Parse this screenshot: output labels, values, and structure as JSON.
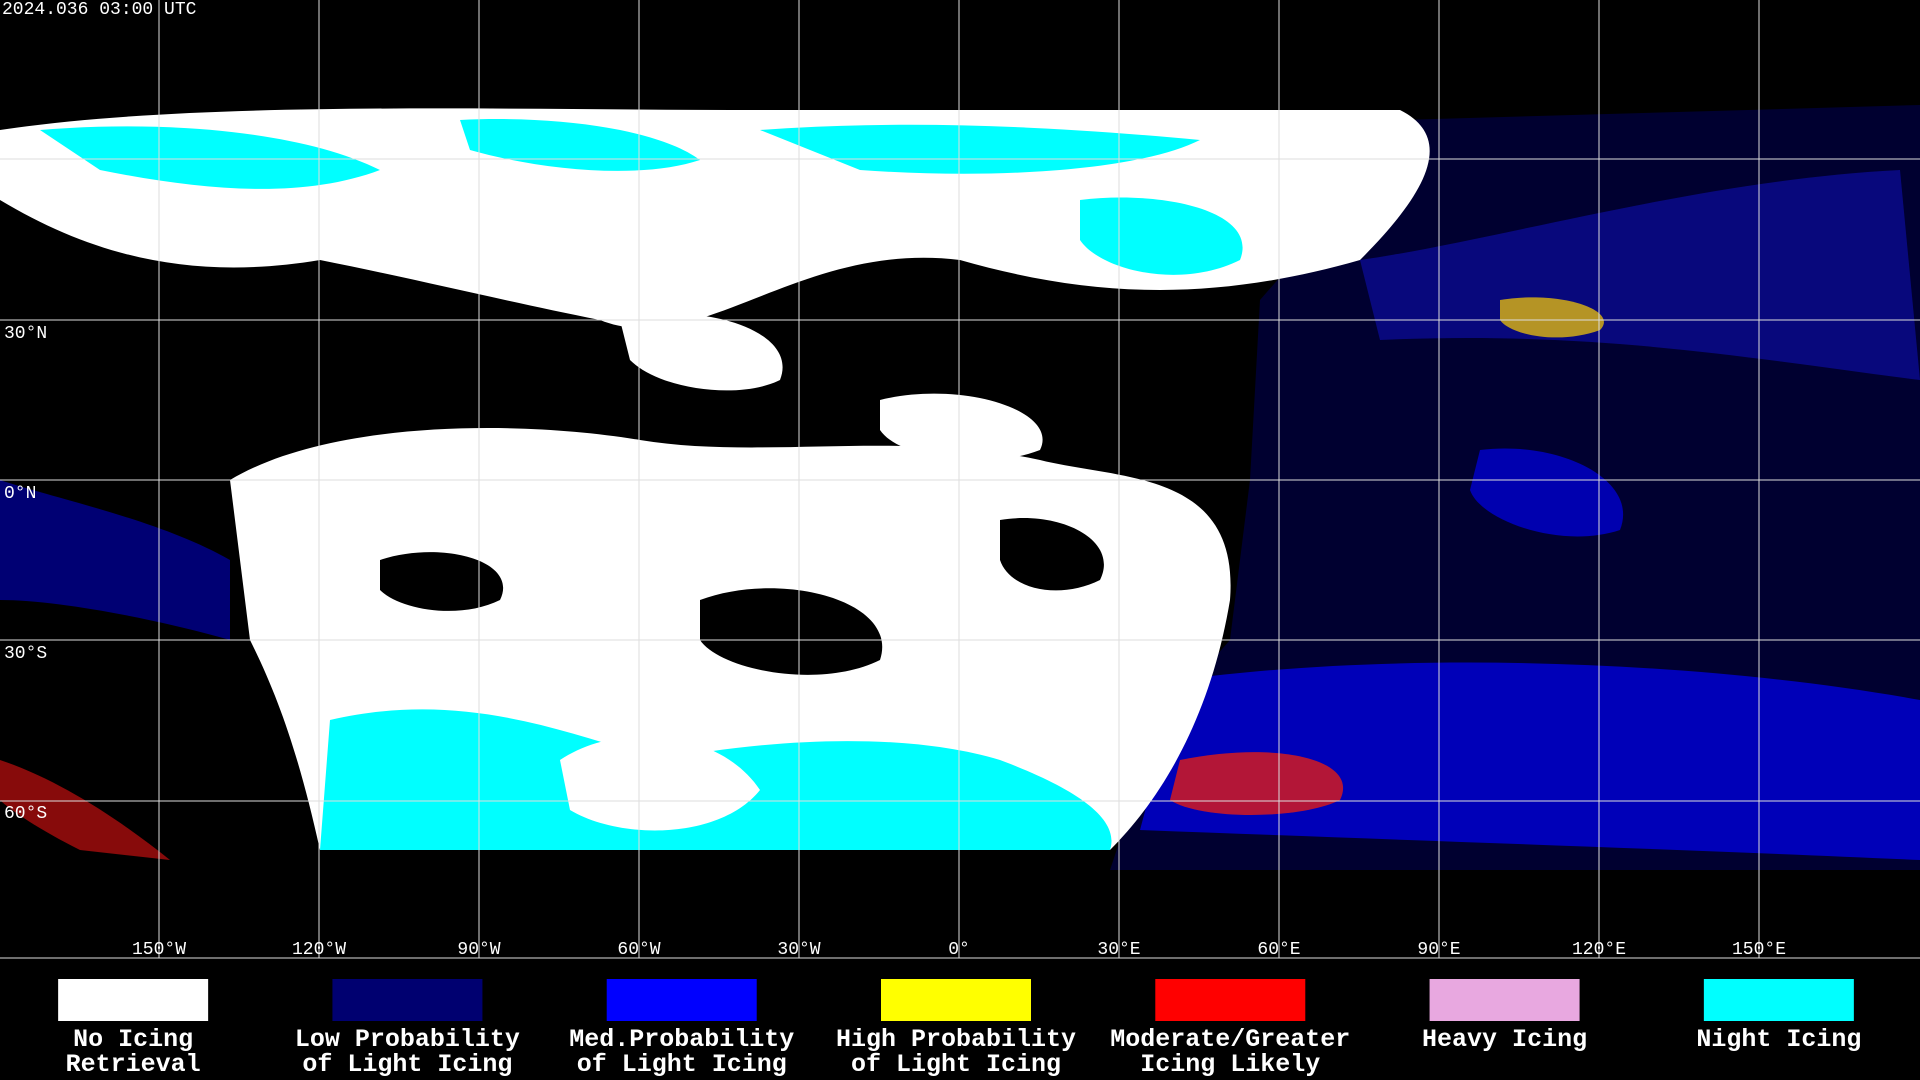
{
  "header": {
    "timestamp": "2024.036 03:00 UTC"
  },
  "map": {
    "longitude_labels": [
      "150°W",
      "120°W",
      "90°W",
      "60°W",
      "30°W",
      "0°",
      "30°E",
      "60°E",
      "90°E",
      "120°E",
      "150°E"
    ],
    "latitude_labels": [
      "30°N",
      "0°N",
      "30°S",
      "60°S"
    ]
  },
  "legend": {
    "items": [
      {
        "color": "#ffffff",
        "lines": [
          "No Icing",
          "Retrieval"
        ]
      },
      {
        "color": "#000070",
        "lines": [
          "Low Probability",
          "of Light Icing"
        ]
      },
      {
        "color": "#0000ff",
        "lines": [
          "Med.Probability",
          "of Light Icing"
        ]
      },
      {
        "color": "#ffff00",
        "lines": [
          "High Probability",
          "of Light Icing"
        ]
      },
      {
        "color": "#ff0000",
        "lines": [
          "Moderate/Greater",
          "Icing Likely"
        ]
      },
      {
        "color": "#e8a8e0",
        "lines": [
          "Heavy Icing"
        ]
      },
      {
        "color": "#00ffff",
        "lines": [
          "Night Icing"
        ]
      }
    ]
  }
}
